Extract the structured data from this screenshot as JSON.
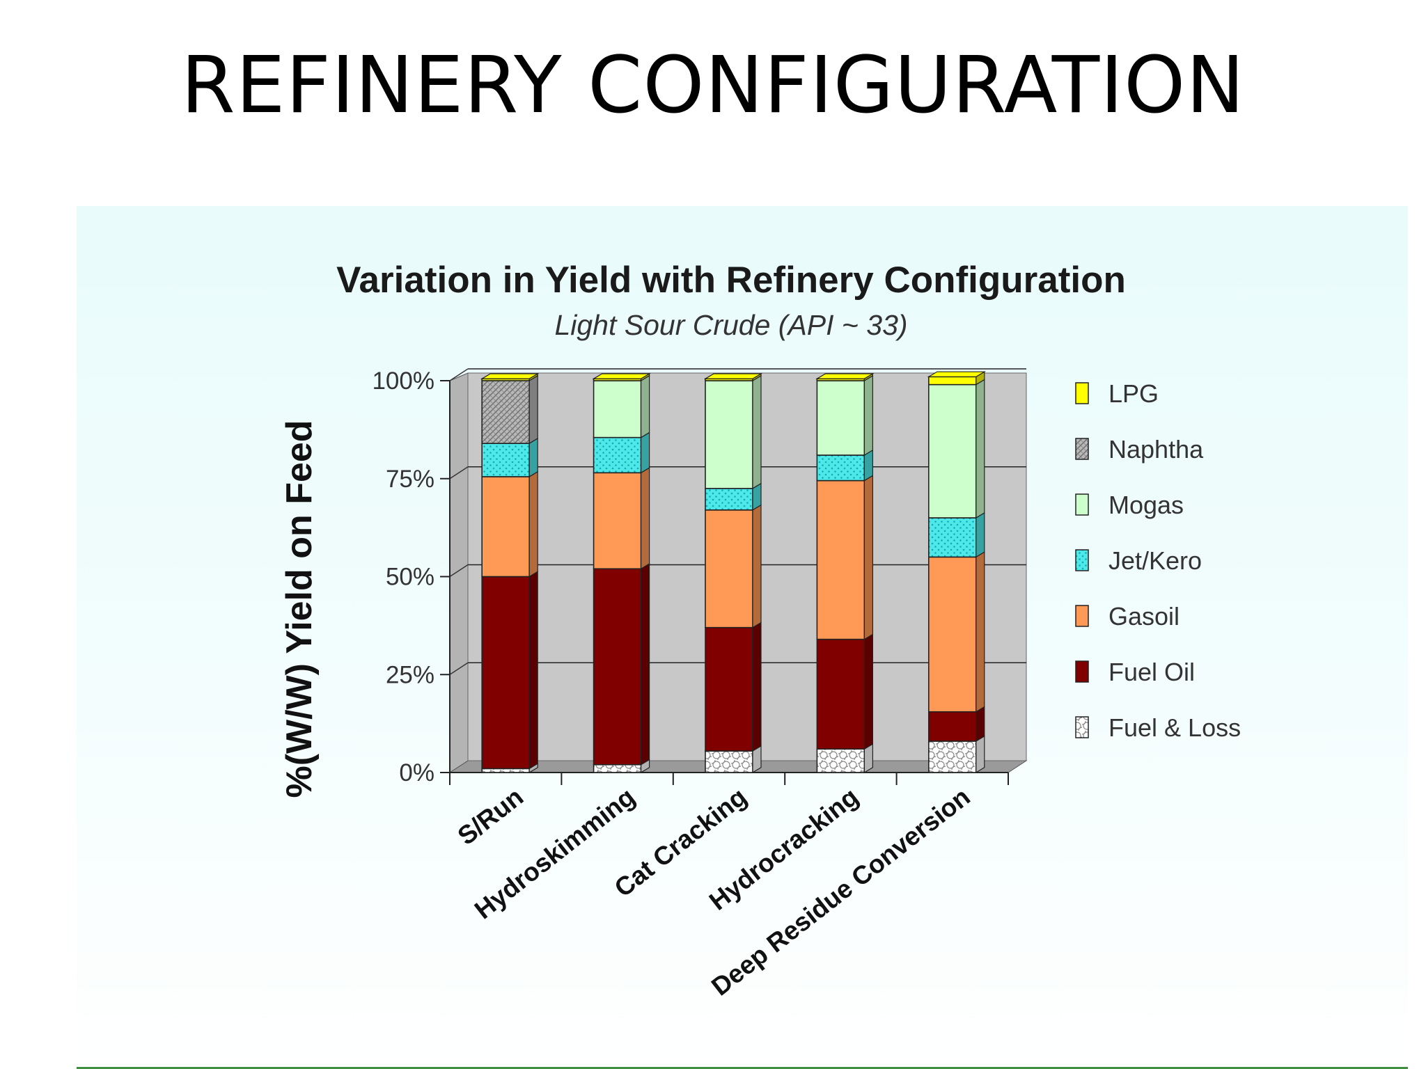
{
  "slide": {
    "title": "REFINERY CONFIGURATION"
  },
  "chart_data": {
    "type": "bar",
    "stacked": true,
    "title": "Variation in Yield with Refinery Configuration",
    "subtitle": "Light Sour Crude (API ~ 33)",
    "ylabel": "%(W/W) Yield on Feed",
    "xlabel": "",
    "ylim": [
      0,
      100
    ],
    "yticks": [
      "0%",
      "25%",
      "50%",
      "75%",
      "100%"
    ],
    "categories": [
      "S/Run",
      "Hydroskimming",
      "Cat Cracking",
      "Hydrocracking",
      "Deep Residue Conversion"
    ],
    "series": [
      {
        "name": "Fuel & Loss",
        "color": "#ffffff",
        "values": [
          1,
          2,
          5.5,
          6,
          8
        ]
      },
      {
        "name": "Fuel Oil",
        "color": "#800000",
        "values": [
          49,
          50,
          31.5,
          28,
          7.5
        ]
      },
      {
        "name": "Gasoil",
        "color": "#ff9955",
        "values": [
          25.5,
          24.5,
          30,
          40.5,
          39.5
        ]
      },
      {
        "name": "Jet/Kero",
        "color": "#4de8e8",
        "values": [
          8.5,
          9,
          5.5,
          6.5,
          10
        ]
      },
      {
        "name": "Mogas",
        "color": "#ccffcc",
        "values": [
          0,
          14.5,
          27.5,
          19,
          34
        ]
      },
      {
        "name": "Naphtha",
        "color": "#b5b5b5",
        "values": [
          16,
          0,
          0,
          0,
          0
        ]
      },
      {
        "name": "LPG",
        "color": "#ffff00",
        "values": [
          0.5,
          0.5,
          0.5,
          0.5,
          2
        ]
      }
    ],
    "legend_order": [
      "LPG",
      "Naphtha",
      "Mogas",
      "Jet/Kero",
      "Gasoil",
      "Fuel Oil",
      "Fuel & Loss"
    ],
    "grid": true,
    "legend_position": "right",
    "plot_background": "#c8c8c8"
  }
}
